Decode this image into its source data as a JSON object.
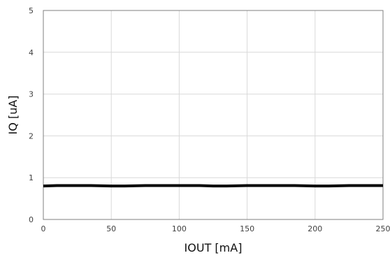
{
  "chart_data": {
    "type": "line",
    "title": "",
    "xlabel": "IOUT [mA]",
    "ylabel": "IQ [uA]",
    "xlim": [
      0,
      250
    ],
    "ylim": [
      0,
      5
    ],
    "xticks": [
      0,
      50,
      100,
      150,
      200,
      250
    ],
    "yticks": [
      0,
      1,
      2,
      3,
      4,
      5
    ],
    "grid": true,
    "legend": "none",
    "series": [
      {
        "color": "#000000",
        "x": [
          0,
          10,
          25,
          35,
          50,
          60,
          75,
          100,
          115,
          125,
          135,
          150,
          175,
          185,
          200,
          210,
          225,
          250
        ],
        "y": [
          0.8,
          0.81,
          0.81,
          0.81,
          0.8,
          0.8,
          0.81,
          0.81,
          0.81,
          0.8,
          0.8,
          0.81,
          0.81,
          0.81,
          0.8,
          0.8,
          0.81,
          0.81
        ]
      }
    ]
  }
}
